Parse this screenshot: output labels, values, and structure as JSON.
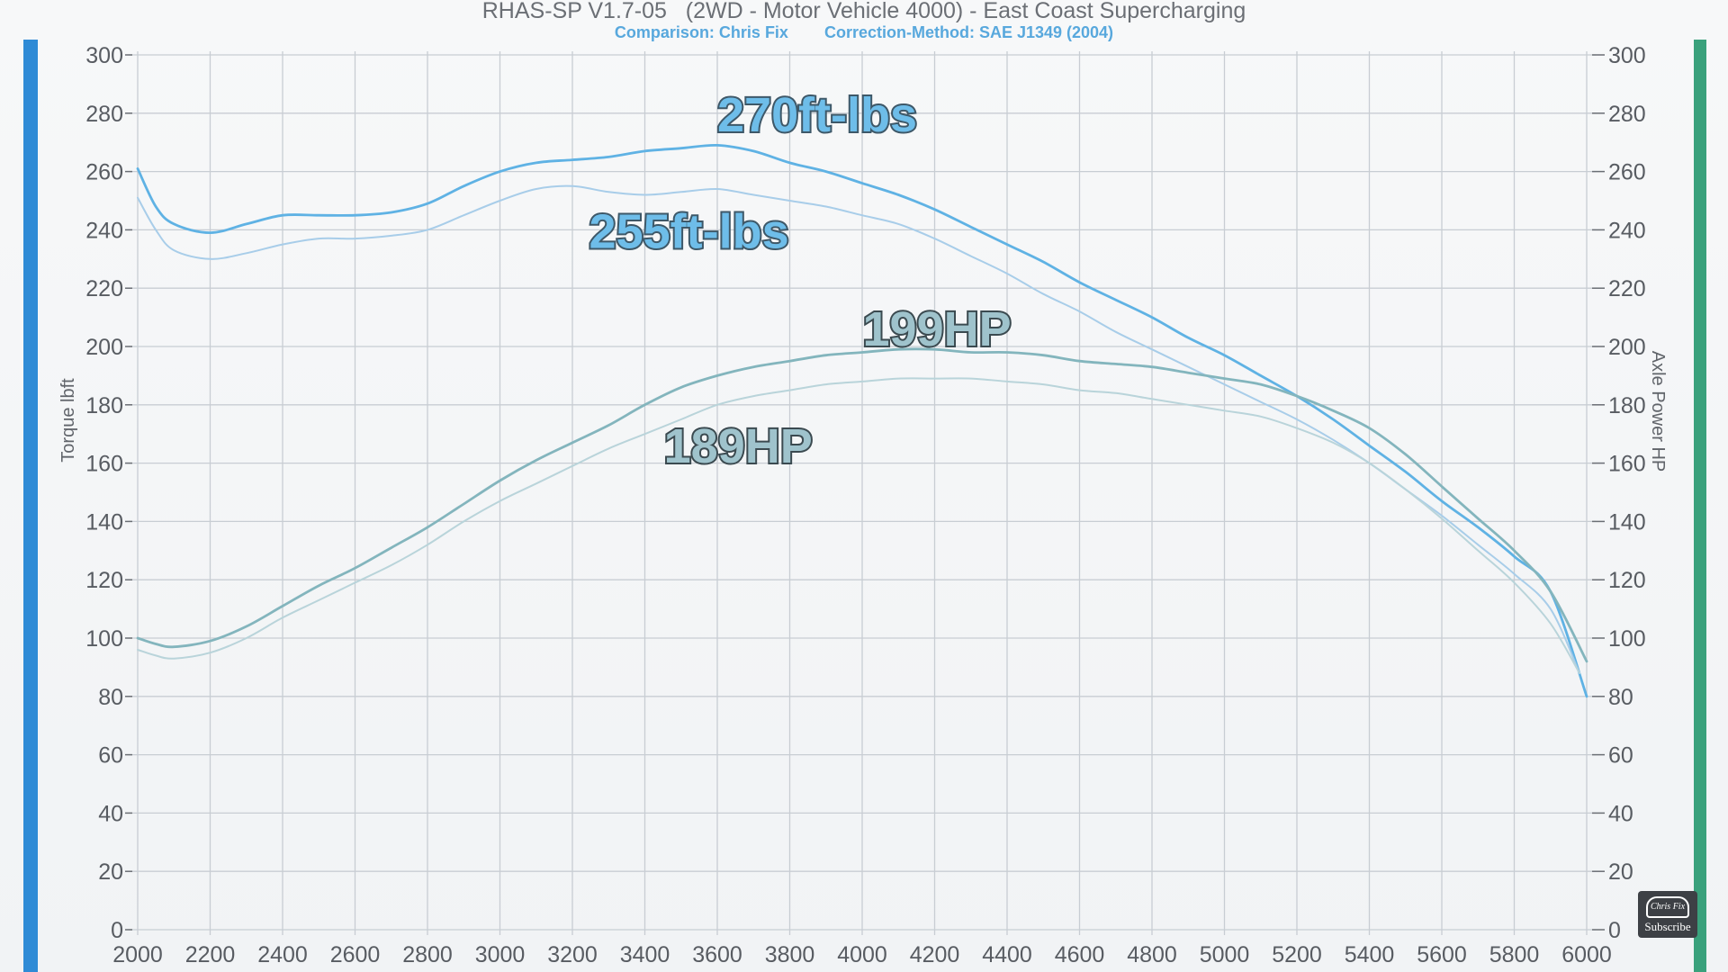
{
  "header": {
    "title": "RHAS-SP V1.7-05   (2WD - Motor Vehicle 4000) - East Coast Supercharging",
    "comparison": "Comparison: Chris Fix",
    "correction": "Correction-Method: SAE J1349 (2004)"
  },
  "logo": {
    "text": "Chris Fix",
    "subscribe": "Subscribe"
  },
  "colors": {
    "background": "#f3f4f6",
    "grid": "#c8cdd3",
    "left_bar": "#2f8bd6",
    "right_bar": "#3aa17c",
    "torque_after": "#5fb2e4",
    "torque_before": "#a8cde9",
    "power_after": "#83b5bd",
    "power_before": "#b9d4da",
    "torque_label_fill": "#6ebde9",
    "torque_label_stroke": "#3e5868",
    "power_label_fill": "#9fc3cc",
    "power_label_stroke": "#3b4a50"
  },
  "chart_data": {
    "type": "line",
    "title": "RHAS-SP V1.7-05   (2WD - Motor Vehicle 4000) - East Coast Supercharging",
    "ylabel": "Torque lbft",
    "y2label": "Axle Power HP",
    "xlim": [
      2000,
      6000
    ],
    "ylim": [
      0,
      300
    ],
    "y2lim": [
      0,
      300
    ],
    "grid": true,
    "x_ticks": [
      "2000",
      "2200",
      "2400",
      "2600",
      "2800",
      "3000",
      "3200",
      "3400",
      "3600",
      "3800",
      "4000",
      "4200",
      "4400",
      "4600",
      "4800",
      "5000",
      "5200",
      "5400",
      "5600",
      "5800",
      "6000"
    ],
    "y_ticks": [
      "0",
      "20",
      "40",
      "60",
      "80",
      "100",
      "120",
      "140",
      "160",
      "180",
      "200",
      "220",
      "240",
      "260",
      "280",
      "300"
    ],
    "y2_ticks": [
      "0",
      "20",
      "40",
      "60",
      "80",
      "100",
      "120",
      "140",
      "160",
      "180",
      "200",
      "220",
      "240",
      "260",
      "280",
      "300"
    ],
    "annotations": [
      {
        "text": "270ft-lbs",
        "series": "torque_after",
        "x": 3600,
        "y": 270
      },
      {
        "text": "255ft-lbs",
        "series": "torque_before",
        "x": 3420,
        "y": 232
      },
      {
        "text": "199HP",
        "series": "power_after",
        "x": 4200,
        "y": 199
      },
      {
        "text": "189HP",
        "series": "power_before",
        "x": 3850,
        "y": 159
      }
    ],
    "series": [
      {
        "key": "torque_after",
        "x": [
          2000,
          2050,
          2100,
          2200,
          2300,
          2400,
          2500,
          2600,
          2700,
          2800,
          2900,
          3000,
          3100,
          3200,
          3300,
          3400,
          3500,
          3600,
          3700,
          3800,
          3900,
          4000,
          4100,
          4200,
          4300,
          4400,
          4500,
          4600,
          4700,
          4800,
          4900,
          5000,
          5100,
          5200,
          5300,
          5400,
          5500,
          5600,
          5700,
          5800,
          5900,
          6000
        ],
        "values": [
          261,
          248,
          242,
          239,
          242,
          245,
          245,
          245,
          246,
          249,
          255,
          260,
          263,
          264,
          265,
          267,
          268,
          269,
          267,
          263,
          260,
          256,
          252,
          247,
          241,
          235,
          229,
          222,
          216,
          210,
          203,
          197,
          190,
          183,
          175,
          166,
          157,
          147,
          138,
          128,
          116,
          80
        ]
      },
      {
        "key": "torque_before",
        "x": [
          2000,
          2050,
          2100,
          2200,
          2300,
          2400,
          2500,
          2600,
          2700,
          2800,
          2900,
          3000,
          3100,
          3200,
          3300,
          3400,
          3500,
          3600,
          3700,
          3800,
          3900,
          4000,
          4100,
          4200,
          4300,
          4400,
          4500,
          4600,
          4700,
          4800,
          4900,
          5000,
          5100,
          5200,
          5300,
          5400,
          5500,
          5600,
          5700,
          5800,
          5900,
          5980
        ],
        "values": [
          251,
          240,
          233,
          230,
          232,
          235,
          237,
          237,
          238,
          240,
          245,
          250,
          254,
          255,
          253,
          252,
          253,
          254,
          252,
          250,
          248,
          245,
          242,
          237,
          231,
          225,
          218,
          212,
          205,
          199,
          193,
          187,
          181,
          175,
          168,
          160,
          151,
          142,
          132,
          122,
          110,
          88
        ]
      },
      {
        "key": "power_after",
        "x": [
          2000,
          2050,
          2100,
          2200,
          2300,
          2400,
          2500,
          2600,
          2700,
          2800,
          2900,
          3000,
          3100,
          3200,
          3300,
          3400,
          3500,
          3600,
          3700,
          3800,
          3900,
          4000,
          4100,
          4200,
          4300,
          4400,
          4500,
          4600,
          4700,
          4800,
          4900,
          5000,
          5100,
          5200,
          5300,
          5400,
          5500,
          5600,
          5700,
          5800,
          5900,
          6000
        ],
        "values": [
          100,
          98,
          97,
          99,
          104,
          111,
          118,
          124,
          131,
          138,
          146,
          154,
          161,
          167,
          173,
          180,
          186,
          190,
          193,
          195,
          197,
          198,
          199,
          199,
          198,
          198,
          197,
          195,
          194,
          193,
          191,
          189,
          187,
          183,
          178,
          172,
          163,
          152,
          141,
          130,
          116,
          92
        ]
      },
      {
        "key": "power_before",
        "x": [
          2000,
          2050,
          2100,
          2200,
          2300,
          2400,
          2500,
          2600,
          2700,
          2800,
          2900,
          3000,
          3100,
          3200,
          3300,
          3400,
          3500,
          3600,
          3700,
          3800,
          3900,
          4000,
          4100,
          4200,
          4300,
          4400,
          4500,
          4600,
          4700,
          4800,
          4900,
          5000,
          5100,
          5200,
          5300,
          5400,
          5500,
          5600,
          5700,
          5800,
          5900,
          5980
        ],
        "values": [
          96,
          94,
          93,
          95,
          100,
          107,
          113,
          119,
          125,
          132,
          140,
          147,
          153,
          159,
          165,
          170,
          175,
          180,
          183,
          185,
          187,
          188,
          189,
          189,
          189,
          188,
          187,
          185,
          184,
          182,
          180,
          178,
          176,
          172,
          167,
          160,
          151,
          141,
          130,
          119,
          105,
          88
        ]
      }
    ]
  }
}
